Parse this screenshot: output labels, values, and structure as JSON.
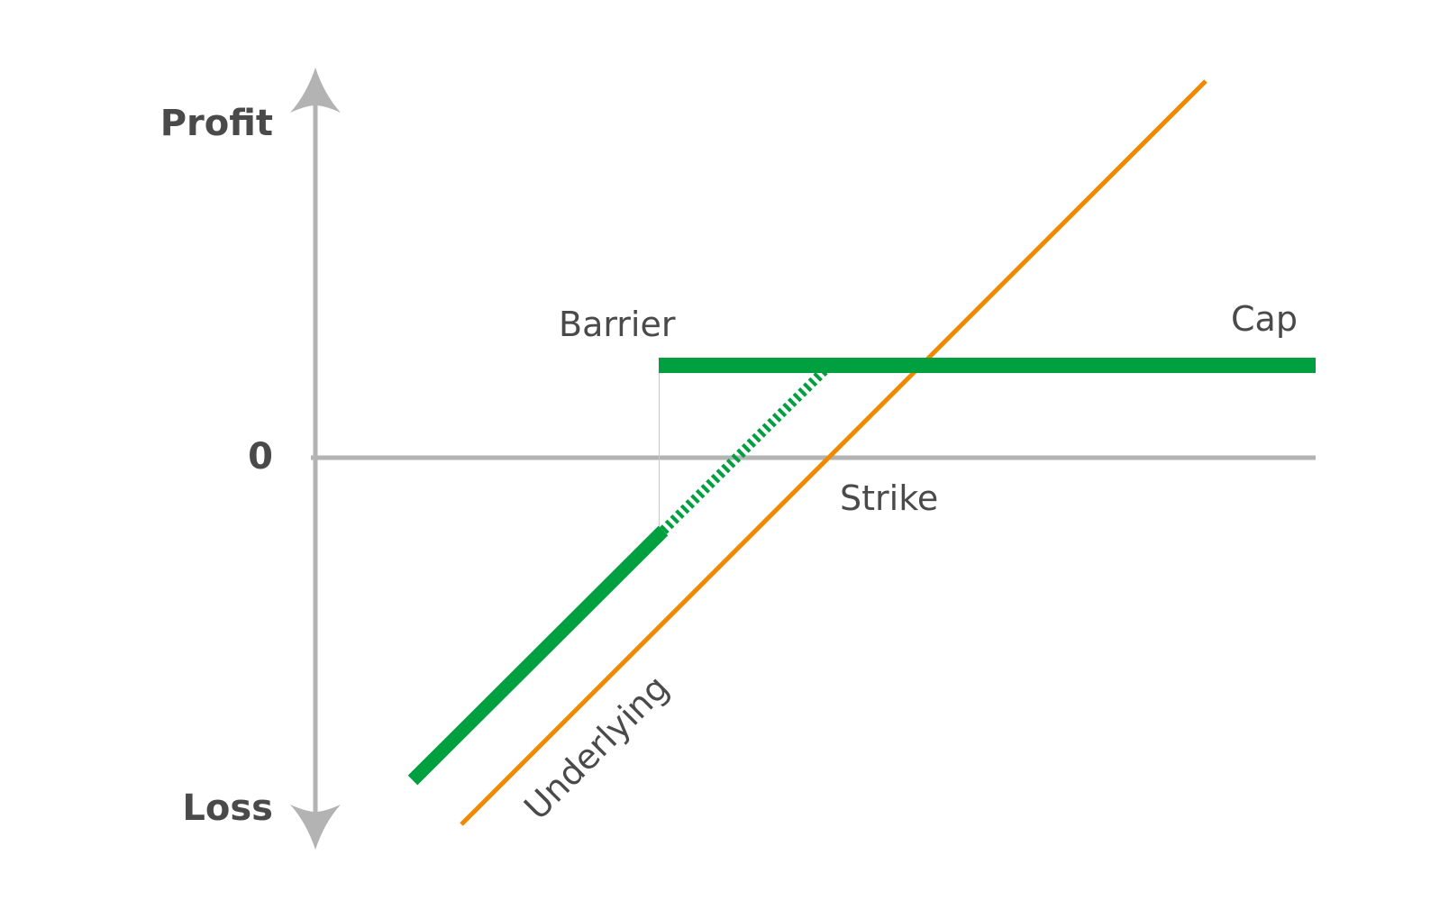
{
  "labels": {
    "profit": "Profit",
    "loss": "Loss",
    "zero": "0",
    "barrier": "Barrier",
    "cap": "Cap",
    "strike": "Strike",
    "underlying": "Underlying"
  },
  "colors": {
    "axis": "#b3b3b3",
    "product": "#009f3f",
    "underlying": "#ef8a00",
    "text": "#4a4a4a"
  }
}
